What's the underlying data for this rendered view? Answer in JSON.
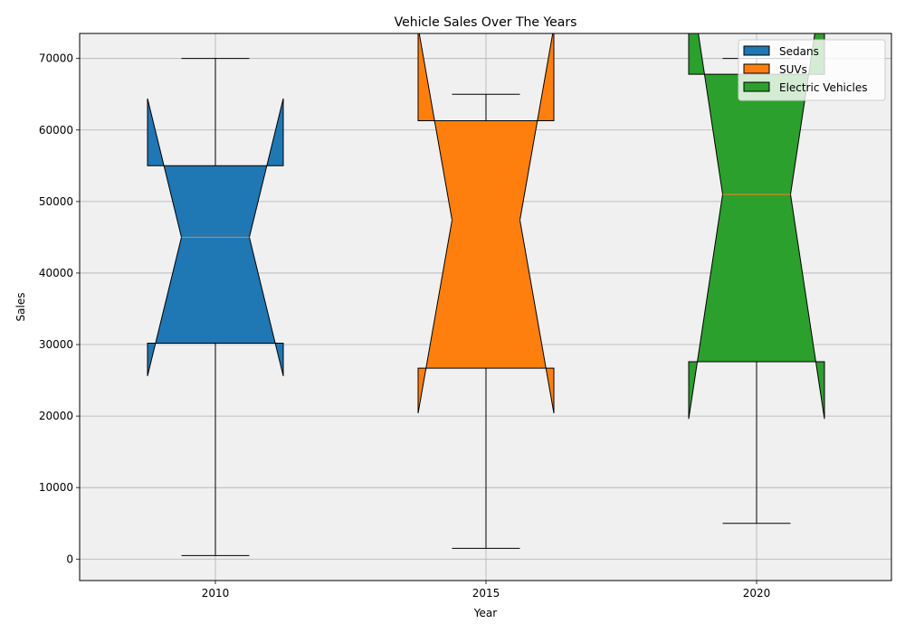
{
  "chart_data": {
    "type": "boxplot",
    "title": "Vehicle Sales Over The Years",
    "xlabel": "Year",
    "ylabel": "Sales",
    "categories": [
      "2010",
      "2015",
      "2020"
    ],
    "ylim": [
      -3000,
      73500
    ],
    "yticks": [
      0,
      10000,
      20000,
      30000,
      40000,
      50000,
      60000,
      70000
    ],
    "grid": true,
    "notched": true,
    "legend_position": "top-right",
    "plot_background": "#f0f0f0",
    "median_color": "#ff7f0e",
    "series": [
      {
        "name": "Sedans",
        "color": "#1f77b4",
        "whisker_low": 500,
        "q1": 30200,
        "median": 45000,
        "q3": 55000,
        "whisker_high": 70000,
        "notch_low": 25600,
        "notch_high": 64400
      },
      {
        "name": "SUVs",
        "color": "#ff7f0e",
        "whisker_low": 1500,
        "q1": 26700,
        "median": 47400,
        "q3": 61300,
        "whisker_high": 65000,
        "notch_low": 20400,
        "notch_high": 74400
      },
      {
        "name": "Electric Vehicles",
        "color": "#2ca02c",
        "whisker_low": 5000,
        "q1": 27600,
        "median": 51000,
        "q3": 67800,
        "whisker_high": 70000,
        "notch_low": 19600,
        "notch_high": 82400
      }
    ]
  }
}
